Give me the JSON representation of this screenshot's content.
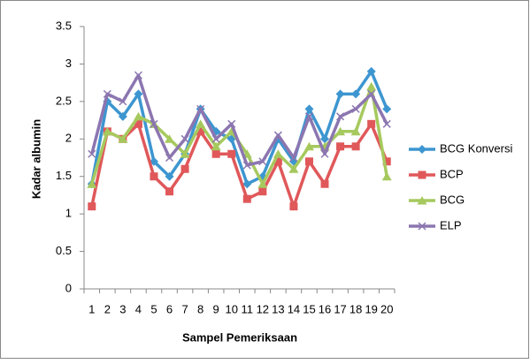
{
  "chart_data": {
    "type": "line",
    "y_label": "Kadar albumin",
    "x_label": "Sampel Pemeriksaan",
    "categories": [
      "1",
      "2",
      "3",
      "4",
      "5",
      "6",
      "7",
      "8",
      "9",
      "10",
      "11",
      "12",
      "13",
      "14",
      "15",
      "16",
      "17",
      "18",
      "19",
      "20"
    ],
    "series": [
      {
        "name": "BCG Konversi",
        "color": "#3d96d0",
        "marker": "diamond",
        "values": [
          1.4,
          2.5,
          2.3,
          2.6,
          1.7,
          1.5,
          1.8,
          2.4,
          2.1,
          2.0,
          1.4,
          1.5,
          2.0,
          1.7,
          2.4,
          2.0,
          2.6,
          2.6,
          2.9,
          2.4
        ]
      },
      {
        "name": "BCP",
        "color": "#e0585a",
        "marker": "square",
        "values": [
          1.1,
          2.1,
          2.0,
          2.2,
          1.5,
          1.3,
          1.6,
          2.1,
          1.8,
          1.8,
          1.2,
          1.3,
          1.7,
          1.1,
          1.7,
          1.4,
          1.9,
          1.9,
          2.2,
          1.7
        ]
      },
      {
        "name": "BCG",
        "color": "#a6c95e",
        "marker": "triangle",
        "values": [
          1.4,
          2.1,
          2.0,
          2.3,
          2.2,
          2.0,
          1.8,
          2.2,
          1.9,
          2.1,
          1.8,
          1.4,
          1.8,
          1.6,
          1.9,
          1.9,
          2.1,
          2.1,
          2.7,
          1.5
        ]
      },
      {
        "name": "ELP",
        "color": "#8c76b0",
        "marker": "x",
        "values": [
          1.8,
          2.6,
          2.5,
          2.85,
          2.2,
          1.75,
          2.0,
          2.4,
          2.0,
          2.2,
          1.65,
          1.7,
          2.05,
          1.75,
          2.3,
          1.8,
          2.3,
          2.4,
          2.6,
          2.2
        ]
      }
    ],
    "ylim": [
      0,
      3.5
    ],
    "yticks": [
      0,
      0.5,
      1,
      1.5,
      2,
      2.5,
      3,
      3.5
    ],
    "grid": false,
    "legend": "right"
  }
}
